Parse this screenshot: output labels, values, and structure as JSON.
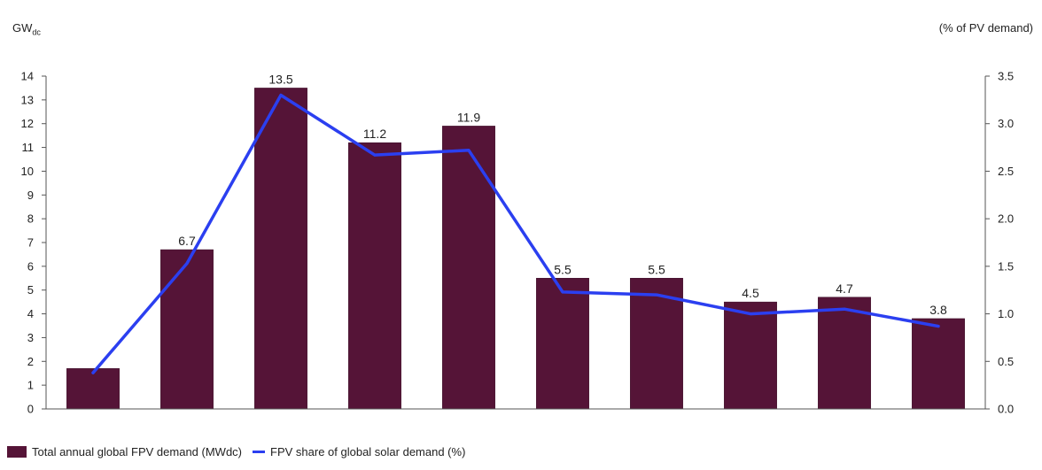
{
  "chart_data": {
    "type": "bar",
    "left_axis_title": "GW",
    "left_axis_title_sub": "dc",
    "right_axis_title": "(% of PV demand)",
    "categories": [
      "",
      "",
      "",
      "",
      "",
      "",
      "",
      "",
      "",
      ""
    ],
    "y_left": {
      "min": 0,
      "max": 14,
      "ticks": [
        "0",
        "1",
        "2",
        "3",
        "4",
        "5",
        "6",
        "7",
        "8",
        "9",
        "10",
        "11",
        "12",
        "13",
        "14"
      ]
    },
    "y_right": {
      "min": 0,
      "max": 3.5,
      "ticks": [
        "0.0",
        "0.5",
        "1.0",
        "1.5",
        "2.0",
        "2.5",
        "3.0",
        "3.5"
      ]
    },
    "series": [
      {
        "name": "Total annual global FPV demand (MWdc)",
        "type": "bar",
        "axis": "left",
        "color": "#551437",
        "values": [
          1.7,
          6.7,
          13.5,
          11.2,
          11.9,
          5.5,
          5.5,
          4.5,
          4.7,
          3.8
        ],
        "labels": [
          "",
          "6.7",
          "13.5",
          "11.2",
          "11.9",
          "5.5",
          "5.5",
          "4.5",
          "4.7",
          "3.8"
        ]
      },
      {
        "name": "FPV share of global solar demand (%)",
        "type": "line",
        "axis": "right",
        "color": "#2b3ff0",
        "values": [
          0.38,
          1.53,
          3.3,
          2.67,
          2.72,
          1.23,
          1.2,
          1.0,
          1.05,
          0.87
        ]
      }
    ],
    "legend_position": "bottom-left",
    "grid": false
  }
}
